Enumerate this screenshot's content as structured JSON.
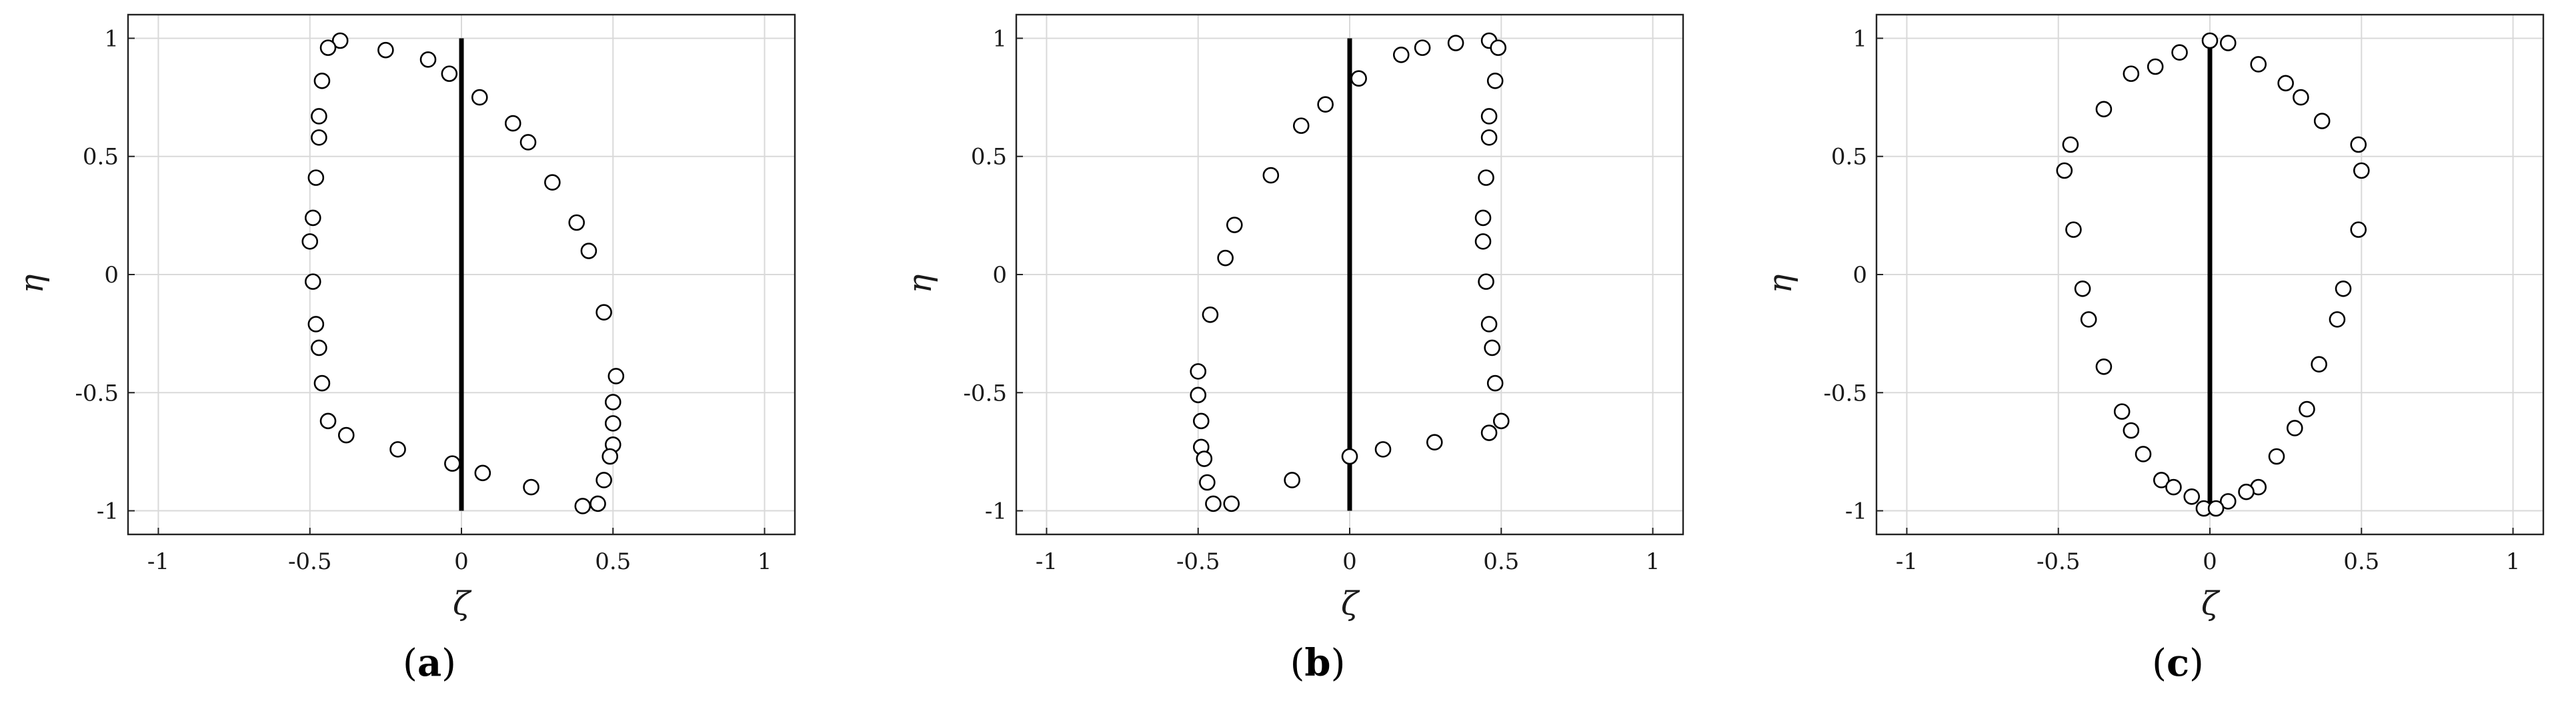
{
  "chart_data": [
    {
      "type": "scatter",
      "panel": "(a)",
      "panel_letter": "a",
      "xlabel": "ζ",
      "ylabel": "η",
      "xlim": [
        -1.1,
        1.1
      ],
      "ylim": [
        -1.1,
        1.1
      ],
      "x_ticks": [
        -1,
        -0.5,
        0,
        0.5,
        1
      ],
      "y_ticks": [
        -1,
        -0.5,
        0,
        0.5,
        1
      ],
      "grid": true,
      "reference_line": {
        "x": [
          0,
          0
        ],
        "y": [
          -1,
          1
        ]
      },
      "points": [
        [
          -0.4,
          0.99
        ],
        [
          -0.44,
          0.96
        ],
        [
          -0.25,
          0.95
        ],
        [
          -0.11,
          0.91
        ],
        [
          -0.04,
          0.85
        ],
        [
          -0.46,
          0.82
        ],
        [
          0.06,
          0.75
        ],
        [
          -0.47,
          0.67
        ],
        [
          0.17,
          0.64
        ],
        [
          -0.47,
          0.58
        ],
        [
          0.22,
          0.56
        ],
        [
          -0.48,
          0.41
        ],
        [
          0.3,
          0.39
        ],
        [
          -0.49,
          0.24
        ],
        [
          0.38,
          0.22
        ],
        [
          -0.5,
          0.14
        ],
        [
          0.42,
          0.1
        ],
        [
          -0.49,
          -0.03
        ],
        [
          0.47,
          -0.16
        ],
        [
          -0.48,
          -0.21
        ],
        [
          -0.47,
          -0.31
        ],
        [
          0.51,
          -0.43
        ],
        [
          -0.46,
          -0.46
        ],
        [
          0.5,
          -0.54
        ],
        [
          -0.44,
          -0.62
        ],
        [
          0.5,
          -0.63
        ],
        [
          -0.38,
          -0.68
        ],
        [
          0.5,
          -0.72
        ],
        [
          -0.21,
          -0.74
        ],
        [
          0.49,
          -0.77
        ],
        [
          -0.03,
          -0.8
        ],
        [
          0.07,
          -0.84
        ],
        [
          0.47,
          -0.87
        ],
        [
          0.23,
          -0.9
        ],
        [
          0.45,
          -0.97
        ],
        [
          0.4,
          -0.98
        ]
      ]
    },
    {
      "type": "scatter",
      "panel": "(b)",
      "panel_letter": "b",
      "xlabel": "ζ",
      "ylabel": "η",
      "xlim": [
        -1.1,
        1.1
      ],
      "ylim": [
        -1.1,
        1.1
      ],
      "x_ticks": [
        -1,
        -0.5,
        0,
        0.5,
        1
      ],
      "y_ticks": [
        -1,
        -0.5,
        0,
        0.5,
        1
      ],
      "grid": true,
      "reference_line": {
        "x": [
          0,
          0
        ],
        "y": [
          -1,
          1
        ]
      },
      "points": [
        [
          0.46,
          0.99
        ],
        [
          0.35,
          0.98
        ],
        [
          0.49,
          0.96
        ],
        [
          0.24,
          0.96
        ],
        [
          0.17,
          0.93
        ],
        [
          0.03,
          0.83
        ],
        [
          0.48,
          0.82
        ],
        [
          -0.08,
          0.72
        ],
        [
          0.46,
          0.67
        ],
        [
          -0.16,
          0.63
        ],
        [
          0.46,
          0.58
        ],
        [
          -0.26,
          0.42
        ],
        [
          0.45,
          0.41
        ],
        [
          0.44,
          0.24
        ],
        [
          -0.38,
          0.21
        ],
        [
          0.44,
          0.14
        ],
        [
          -0.41,
          0.07
        ],
        [
          0.45,
          -0.03
        ],
        [
          -0.46,
          -0.17
        ],
        [
          0.46,
          -0.21
        ],
        [
          0.47,
          -0.31
        ],
        [
          -0.5,
          -0.41
        ],
        [
          0.48,
          -0.46
        ],
        [
          -0.5,
          -0.51
        ],
        [
          -0.49,
          -0.62
        ],
        [
          0.5,
          -0.62
        ],
        [
          0.46,
          -0.67
        ],
        [
          0.28,
          -0.71
        ],
        [
          -0.49,
          -0.73
        ],
        [
          0.11,
          -0.74
        ],
        [
          -0.48,
          -0.78
        ],
        [
          0.0,
          -0.77
        ],
        [
          -0.47,
          -0.88
        ],
        [
          -0.19,
          -0.87
        ],
        [
          -0.45,
          -0.97
        ],
        [
          -0.39,
          -0.97
        ]
      ]
    },
    {
      "type": "scatter",
      "panel": "(c)",
      "panel_letter": "c",
      "xlabel": "ζ",
      "ylabel": "η",
      "xlim": [
        -1.1,
        1.1
      ],
      "ylim": [
        -1.1,
        1.1
      ],
      "x_ticks": [
        -1,
        -0.5,
        0,
        0.5,
        1
      ],
      "y_ticks": [
        -1,
        -0.5,
        0,
        0.5,
        1
      ],
      "grid": true,
      "reference_line": {
        "x": [
          0,
          0
        ],
        "y": [
          -1,
          1
        ]
      },
      "points": [
        [
          0.0,
          0.99
        ],
        [
          0.06,
          0.98
        ],
        [
          -0.1,
          0.94
        ],
        [
          0.16,
          0.89
        ],
        [
          -0.18,
          0.88
        ],
        [
          -0.26,
          0.85
        ],
        [
          0.25,
          0.81
        ],
        [
          0.3,
          0.75
        ],
        [
          -0.35,
          0.7
        ],
        [
          0.37,
          0.65
        ],
        [
          -0.46,
          0.55
        ],
        [
          0.49,
          0.55
        ],
        [
          -0.48,
          0.44
        ],
        [
          0.5,
          0.44
        ],
        [
          -0.45,
          0.19
        ],
        [
          0.49,
          0.19
        ],
        [
          -0.42,
          -0.06
        ],
        [
          0.44,
          -0.06
        ],
        [
          -0.4,
          -0.19
        ],
        [
          0.42,
          -0.19
        ],
        [
          -0.35,
          -0.39
        ],
        [
          0.36,
          -0.38
        ],
        [
          -0.29,
          -0.58
        ],
        [
          0.32,
          -0.57
        ],
        [
          -0.26,
          -0.66
        ],
        [
          0.28,
          -0.65
        ],
        [
          -0.22,
          -0.76
        ],
        [
          0.22,
          -0.77
        ],
        [
          -0.16,
          -0.87
        ],
        [
          -0.12,
          -0.9
        ],
        [
          0.16,
          -0.9
        ],
        [
          0.12,
          -0.92
        ],
        [
          -0.06,
          -0.94
        ],
        [
          0.06,
          -0.96
        ],
        [
          -0.02,
          -0.99
        ],
        [
          0.02,
          -0.99
        ]
      ]
    }
  ]
}
